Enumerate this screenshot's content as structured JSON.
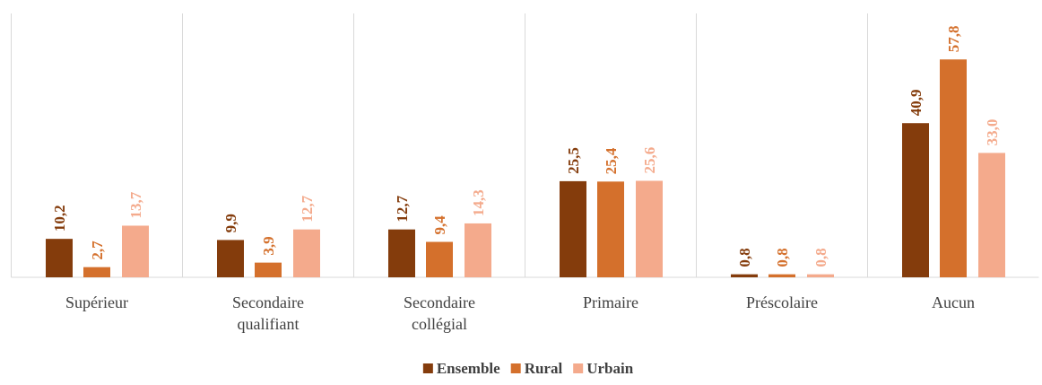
{
  "chart_data": {
    "type": "bar",
    "categories": [
      "Supérieur",
      "Secondaire qualifiant",
      "Secondaire collégial",
      "Primaire",
      "Préscolaire",
      "Aucun"
    ],
    "series": [
      {
        "name": "Ensemble",
        "color": "#843c0c",
        "values": [
          10.2,
          9.9,
          12.7,
          25.5,
          0.8,
          40.9
        ],
        "value_labels": [
          "10,2",
          "9,9",
          "12,7",
          "25,5",
          "0,8",
          "40,9"
        ]
      },
      {
        "name": "Rural",
        "color": "#d4702c",
        "values": [
          2.7,
          3.9,
          9.4,
          25.4,
          0.8,
          57.8
        ],
        "value_labels": [
          "2,7",
          "3,9",
          "9,4",
          "25,4",
          "0,8",
          "57,8"
        ]
      },
      {
        "name": "Urbain",
        "color": "#f4aa8c",
        "values": [
          13.7,
          12.7,
          14.3,
          25.6,
          0.8,
          33.0
        ],
        "value_labels": [
          "13,7",
          "12,7",
          "14,3",
          "25,6",
          "0,8",
          "33,0"
        ]
      }
    ],
    "ylim": [
      0,
      70
    ],
    "legend": "bottom"
  }
}
